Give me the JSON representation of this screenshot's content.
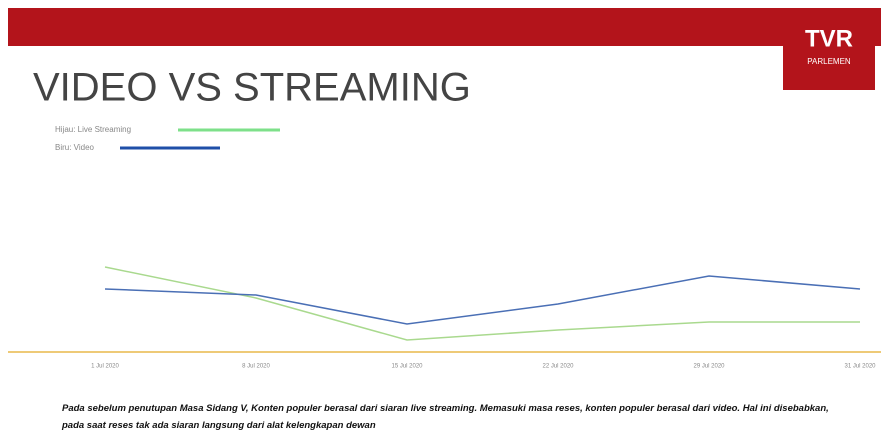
{
  "header": {
    "logo": "TVR",
    "logo_sub": "PARLEMEN"
  },
  "chart_data": {
    "type": "line",
    "title": "VIDEO VS STREAMING",
    "categories": [
      "1 Jul 2020",
      "8 Jul 2020",
      "15 Jul 2020",
      "22 Jul 2020",
      "29 Jul 2020",
      "31 Jul 2020"
    ],
    "series": [
      {
        "name": "Hijau: Live Streaming",
        "color": "#a9d98e",
        "legend_color": "#7ee08a",
        "values": [
          85,
          54,
          12,
          22,
          30,
          30
        ]
      },
      {
        "name": "Biru: Video",
        "color": "#4a6fb5",
        "legend_color": "#1f4fa8",
        "values": [
          63,
          57,
          28,
          48,
          76,
          63
        ]
      }
    ],
    "ylim": [
      0,
      130
    ],
    "axis_color": "#e8b84a"
  },
  "caption": "Pada sebelum penutupan Masa Sidang V, Konten populer berasal dari siaran live streaming. Memasuki masa reses, konten populer berasal dari video. Hal ini disebabkan, pada saat reses tak ada siaran langsung dari alat kelengkapan dewan"
}
